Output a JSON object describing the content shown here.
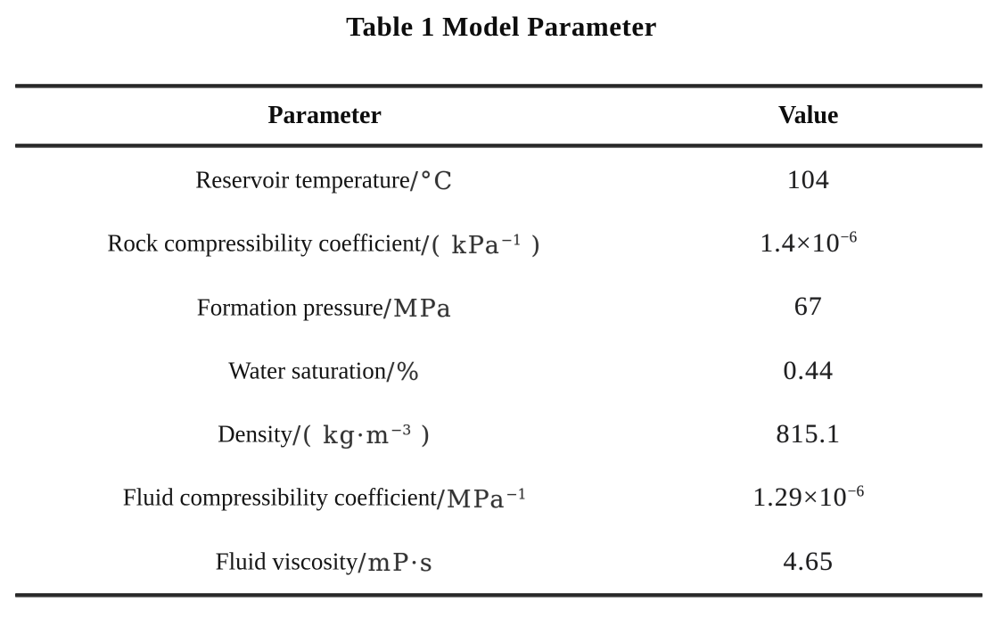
{
  "page": {
    "background_color": "#ffffff",
    "text_color": "#151515",
    "rule_color": "#2b2b2b"
  },
  "title": "Table 1 Model Parameter",
  "table": {
    "headers": {
      "parameter": "Parameter",
      "value": "Value"
    },
    "rows": [
      {
        "name": "Reservoir temperature",
        "unit": "/°C",
        "unit_sup": "",
        "unit_close": "",
        "value": "104",
        "value_sup": ""
      },
      {
        "name": "Rock compressibility coefficient",
        "unit": "/( kPa",
        "unit_sup": "−1",
        "unit_close": " )",
        "value": "1.4×10",
        "value_sup": "−6"
      },
      {
        "name": "Formation pressure",
        "unit": "/MPa",
        "unit_sup": "",
        "unit_close": "",
        "value": "67",
        "value_sup": ""
      },
      {
        "name": "Water saturation",
        "unit": "/%",
        "unit_sup": "",
        "unit_close": "",
        "value": "0.44",
        "value_sup": ""
      },
      {
        "name": "Density",
        "unit": "/( kg·m",
        "unit_sup": "−3",
        "unit_close": " )",
        "value": "815.1",
        "value_sup": ""
      },
      {
        "name": "Fluid compressibility coefficient",
        "unit": "/MPa",
        "unit_sup": "−1",
        "unit_close": "",
        "value": "1.29×10",
        "value_sup": "−6"
      },
      {
        "name": "Fluid viscosity",
        "unit": "/mP·s",
        "unit_sup": "",
        "unit_close": "",
        "value": "4.65",
        "value_sup": ""
      }
    ]
  }
}
